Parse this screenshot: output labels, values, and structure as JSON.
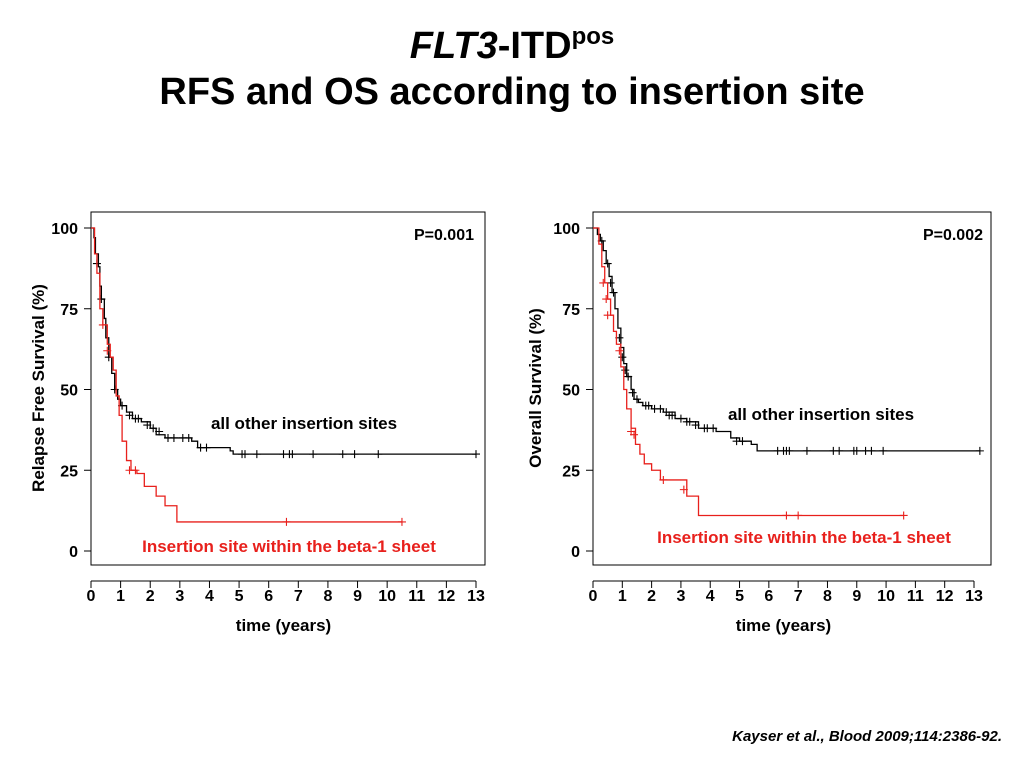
{
  "slide": {
    "title_gene": "FLT3",
    "title_dash_itd": "-ITD",
    "title_sup": "pos",
    "title_line2": "RFS and OS according to insertion site",
    "citation": "Kayser et al., Blood 2009;114:2386-92."
  },
  "colors": {
    "other": "#000000",
    "beta1": "#e8201c",
    "axis": "#000000"
  },
  "chart_data": [
    {
      "type": "line",
      "chart_kind": "kaplan-meier",
      "ylabel": "Relapse Free Survival (%)",
      "xlabel": "time (years)",
      "pvalue": "P=0.001",
      "xlim": [
        0,
        13
      ],
      "ylim": [
        0,
        100
      ],
      "x_ticks": [
        0,
        1,
        2,
        3,
        4,
        5,
        6,
        7,
        8,
        9,
        10,
        11,
        12,
        13
      ],
      "y_ticks": [
        0,
        25,
        50,
        75,
        100
      ],
      "series": [
        {
          "name": "all other insertion sites",
          "color_key": "other",
          "steps": [
            [
              0,
              100
            ],
            [
              0.1,
              97
            ],
            [
              0.15,
              92
            ],
            [
              0.25,
              88
            ],
            [
              0.3,
              82
            ],
            [
              0.35,
              78
            ],
            [
              0.45,
              72
            ],
            [
              0.5,
              66
            ],
            [
              0.6,
              60
            ],
            [
              0.7,
              55
            ],
            [
              0.8,
              50
            ],
            [
              0.9,
              47
            ],
            [
              1.0,
              45
            ],
            [
              1.2,
              43
            ],
            [
              1.4,
              41
            ],
            [
              1.7,
              40
            ],
            [
              2.0,
              38
            ],
            [
              2.2,
              36
            ],
            [
              2.5,
              35
            ],
            [
              2.9,
              35
            ],
            [
              3.4,
              34
            ],
            [
              3.6,
              32
            ],
            [
              4.7,
              31
            ],
            [
              4.8,
              30
            ],
            [
              5.5,
              30
            ],
            [
              13.0,
              30
            ]
          ],
          "censor": [
            [
              0.2,
              89
            ],
            [
              0.35,
              78
            ],
            [
              0.6,
              60
            ],
            [
              0.8,
              50
            ],
            [
              1.05,
              45
            ],
            [
              1.3,
              42
            ],
            [
              1.5,
              41
            ],
            [
              1.6,
              41
            ],
            [
              1.9,
              39
            ],
            [
              2.1,
              38
            ],
            [
              2.3,
              37
            ],
            [
              2.6,
              35
            ],
            [
              2.8,
              35
            ],
            [
              3.1,
              35
            ],
            [
              3.3,
              35
            ],
            [
              3.7,
              32
            ],
            [
              3.9,
              32
            ],
            [
              5.1,
              30
            ],
            [
              5.2,
              30
            ],
            [
              5.6,
              30
            ],
            [
              6.5,
              30
            ],
            [
              6.7,
              30
            ],
            [
              6.8,
              30
            ],
            [
              7.5,
              30
            ],
            [
              8.5,
              30
            ],
            [
              8.9,
              30
            ],
            [
              9.7,
              30
            ],
            [
              13.0,
              30
            ]
          ]
        },
        {
          "name": "Insertion site within the beta-1 sheet",
          "color_key": "beta1",
          "steps": [
            [
              0,
              100
            ],
            [
              0.12,
              92
            ],
            [
              0.2,
              86
            ],
            [
              0.3,
              75
            ],
            [
              0.4,
              70
            ],
            [
              0.55,
              64
            ],
            [
              0.65,
              60
            ],
            [
              0.75,
              56
            ],
            [
              0.85,
              48
            ],
            [
              0.95,
              42
            ],
            [
              1.05,
              34
            ],
            [
              1.2,
              28
            ],
            [
              1.35,
              25
            ],
            [
              1.55,
              24
            ],
            [
              1.8,
              20
            ],
            [
              2.2,
              17
            ],
            [
              2.5,
              14
            ],
            [
              2.9,
              9
            ],
            [
              10.5,
              9
            ]
          ],
          "censor": [
            [
              0.4,
              70
            ],
            [
              0.55,
              62
            ],
            [
              1.3,
              25
            ],
            [
              1.5,
              25
            ],
            [
              6.6,
              9
            ],
            [
              10.5,
              9
            ]
          ]
        }
      ]
    },
    {
      "type": "line",
      "chart_kind": "kaplan-meier",
      "ylabel": "Overall Survival (%)",
      "xlabel": "time (years)",
      "pvalue": "P=0.002",
      "xlim": [
        0,
        13
      ],
      "ylim": [
        0,
        100
      ],
      "x_ticks": [
        0,
        1,
        2,
        3,
        4,
        5,
        6,
        7,
        8,
        9,
        10,
        11,
        12,
        13
      ],
      "y_ticks": [
        0,
        25,
        50,
        75,
        100
      ],
      "series": [
        {
          "name": "all other insertion sites",
          "color_key": "other",
          "steps": [
            [
              0,
              100
            ],
            [
              0.15,
              98
            ],
            [
              0.25,
              96
            ],
            [
              0.35,
              93
            ],
            [
              0.45,
              89
            ],
            [
              0.55,
              85
            ],
            [
              0.65,
              80
            ],
            [
              0.75,
              75
            ],
            [
              0.85,
              69
            ],
            [
              0.95,
              63
            ],
            [
              1.05,
              58
            ],
            [
              1.15,
              54
            ],
            [
              1.3,
              50
            ],
            [
              1.4,
              47
            ],
            [
              1.55,
              46
            ],
            [
              1.7,
              45
            ],
            [
              2.0,
              44
            ],
            [
              2.4,
              43
            ],
            [
              2.8,
              41
            ],
            [
              3.2,
              40
            ],
            [
              3.6,
              38
            ],
            [
              4.2,
              37
            ],
            [
              4.7,
              35
            ],
            [
              5.0,
              34
            ],
            [
              5.4,
              33
            ],
            [
              5.6,
              31
            ],
            [
              13.2,
              31
            ]
          ],
          "censor": [
            [
              0.3,
              96
            ],
            [
              0.5,
              89
            ],
            [
              0.6,
              83
            ],
            [
              0.7,
              80
            ],
            [
              0.9,
              66
            ],
            [
              1.0,
              60
            ],
            [
              1.1,
              56
            ],
            [
              1.2,
              54
            ],
            [
              1.35,
              49
            ],
            [
              1.5,
              47
            ],
            [
              1.8,
              45
            ],
            [
              1.9,
              45
            ],
            [
              2.1,
              44
            ],
            [
              2.3,
              44
            ],
            [
              2.5,
              43
            ],
            [
              2.6,
              42
            ],
            [
              2.7,
              42
            ],
            [
              3.0,
              41
            ],
            [
              3.2,
              40
            ],
            [
              3.3,
              40
            ],
            [
              3.5,
              39
            ],
            [
              3.8,
              38
            ],
            [
              3.9,
              38
            ],
            [
              4.1,
              38
            ],
            [
              4.9,
              34
            ],
            [
              5.1,
              34
            ],
            [
              6.3,
              31
            ],
            [
              6.5,
              31
            ],
            [
              6.6,
              31
            ],
            [
              6.7,
              31
            ],
            [
              7.3,
              31
            ],
            [
              8.2,
              31
            ],
            [
              8.4,
              31
            ],
            [
              8.9,
              31
            ],
            [
              9.0,
              31
            ],
            [
              9.3,
              31
            ],
            [
              9.5,
              31
            ],
            [
              9.9,
              31
            ],
            [
              13.2,
              31
            ]
          ]
        },
        {
          "name": "Insertion site within the beta-1 sheet",
          "color_key": "beta1",
          "steps": [
            [
              0,
              100
            ],
            [
              0.2,
              95
            ],
            [
              0.3,
              88
            ],
            [
              0.4,
              83
            ],
            [
              0.5,
              78
            ],
            [
              0.6,
              73
            ],
            [
              0.7,
              68
            ],
            [
              0.8,
              64
            ],
            [
              0.95,
              57
            ],
            [
              1.05,
              50
            ],
            [
              1.15,
              44
            ],
            [
              1.3,
              38
            ],
            [
              1.45,
              33
            ],
            [
              1.6,
              30
            ],
            [
              1.75,
              27
            ],
            [
              2.0,
              25
            ],
            [
              2.3,
              22
            ],
            [
              3.2,
              17
            ],
            [
              3.6,
              11
            ],
            [
              10.6,
              11
            ]
          ],
          "censor": [
            [
              0.35,
              83
            ],
            [
              0.45,
              78
            ],
            [
              0.5,
              73
            ],
            [
              0.9,
              62
            ],
            [
              1.3,
              37
            ],
            [
              1.4,
              36
            ],
            [
              2.4,
              22
            ],
            [
              3.1,
              19
            ],
            [
              6.6,
              11
            ],
            [
              7.0,
              11
            ],
            [
              10.6,
              11
            ]
          ]
        }
      ]
    }
  ]
}
